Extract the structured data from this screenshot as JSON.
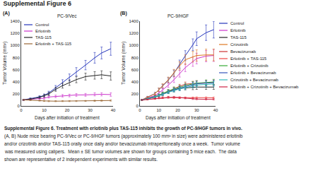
{
  "title": "Supplemental Figure 6",
  "annotations": [
    "Supplemental Figure 6. Treatment with erlotinib plus TAS-115 inhibits the growth of PC-9/HGF tumors in vivo.",
    "(A, B) Nude mice bearing PC-9/Vec or PC-9/HGF tumors (approximately 100 mm³ in size) were administered erlotinib",
    "and/or crizotinib and/or TAS-115 orally once daily and/or bevacizumab intraperitoneally once a week.  Tumor volume",
    "was measured using calipers.  Mean ± SE tumor volumes are shown for groups containing 5 mice each.  The data",
    "shown are representative of 2 independent experiments with similar results."
  ],
  "chart_data": [
    {
      "type": "line",
      "title": "PC-9/Vec",
      "annotations": [
        "(A)"
      ],
      "xlabel": "Days after initiation of treatment",
      "ylabel": "Tumor Volume (mm³)",
      "x": [
        1,
        4,
        8,
        10,
        12,
        15,
        18,
        21,
        24,
        28,
        32,
        35,
        39
      ],
      "series": [
        {
          "name": "Control",
          "color": "#2233bb",
          "values": [
            100,
            120,
            150,
            175,
            215,
            300,
            385,
            470,
            565,
            675,
            795,
            875,
            945
          ],
          "errors": [
            8,
            12,
            18,
            22,
            28,
            38,
            48,
            58,
            68,
            78,
            88,
            98,
            108
          ]
        },
        {
          "name": "Erlotinib",
          "color": "#cc33cc",
          "values": [
            100,
            108,
            118,
            128,
            148,
            158,
            168,
            172,
            182,
            183,
            192,
            192,
            188
          ],
          "errors": [
            8,
            10,
            13,
            16,
            18,
            20,
            20,
            22,
            23,
            23,
            26,
            26,
            28
          ]
        },
        {
          "name": "TAS-115",
          "color": "#222222",
          "values": [
            100,
            113,
            142,
            168,
            198,
            275,
            335,
            385,
            435,
            485,
            505,
            515,
            495
          ],
          "errors": [
            8,
            12,
            16,
            20,
            26,
            33,
            40,
            46,
            52,
            57,
            62,
            65,
            68
          ]
        },
        {
          "name": "Erlotinib + TAS-115",
          "color": "#996633",
          "values": [
            100,
            98,
            88,
            83,
            79,
            79,
            80,
            80,
            81,
            83,
            86,
            88,
            90
          ],
          "errors": [
            6,
            8,
            8,
            8,
            8,
            8,
            8,
            8,
            8,
            8,
            10,
            10,
            10
          ]
        }
      ],
      "xlim": [
        0,
        40
      ],
      "xticks": [
        0,
        10,
        20,
        30,
        40
      ],
      "ylim": [
        0,
        1400
      ],
      "yticks": [
        0,
        200,
        400,
        600,
        800,
        1000,
        1200,
        1400
      ],
      "grid": false,
      "legend": "upper left"
    },
    {
      "type": "line",
      "title": "PC-9/HGF",
      "annotations": [
        "(B)"
      ],
      "xlabel": "Days after initiation of treatment",
      "ylabel": "Tumor Volume (mm³)",
      "x": [
        1,
        4,
        8,
        10,
        12,
        15,
        18,
        21,
        24,
        28,
        30,
        35,
        39
      ],
      "series": [
        {
          "name": "Control",
          "color": "#2233bb",
          "values": [
            100,
            145,
            205,
            265,
            325,
            425,
            540,
            690,
            830,
            1010,
            1110,
            1210,
            1260
          ],
          "errors": [
            8,
            14,
            20,
            28,
            33,
            43,
            53,
            68,
            83,
            98,
            113,
            128,
            138
          ]
        },
        {
          "name": "Erlotinib",
          "color": "#cc33cc",
          "values": [
            100,
            132,
            172,
            213,
            262,
            343,
            433,
            533,
            633,
            733,
            783,
            823,
            833
          ],
          "errors": [
            8,
            13,
            19,
            24,
            28,
            36,
            46,
            56,
            66,
            78,
            88,
            93,
            98
          ]
        },
        {
          "name": "TAS-115",
          "color": "#222222",
          "values": [
            100,
            122,
            152,
            172,
            197,
            232,
            262,
            292,
            302,
            307,
            312,
            312,
            312
          ],
          "errors": [
            6,
            10,
            14,
            18,
            22,
            26,
            30,
            34,
            36,
            38,
            38,
            38,
            38
          ]
        },
        {
          "name": "Crizotinib",
          "color": "#dd7722",
          "values": [
            100,
            142,
            202,
            268,
            332,
            433,
            548,
            663,
            763,
            813,
            833,
            843,
            843
          ],
          "errors": [
            8,
            14,
            20,
            28,
            34,
            44,
            56,
            68,
            80,
            88,
            93,
            96,
            98
          ]
        },
        {
          "name": "Bevacizumab",
          "color": "#cc3333",
          "values": [
            100,
            118,
            145,
            168,
            198,
            242,
            285,
            325,
            360,
            370,
            378,
            382,
            388
          ],
          "errors": [
            6,
            10,
            13,
            17,
            21,
            25,
            28,
            32,
            35,
            37,
            39,
            40,
            41
          ]
        },
        {
          "name": "Erlotinib + TAS-115",
          "color": "#ee4444",
          "values": [
            100,
            108,
            122,
            132,
            137,
            142,
            137,
            135,
            135,
            135,
            137,
            137,
            135
          ],
          "errors": [
            6,
            8,
            10,
            12,
            13,
            14,
            13,
            12,
            12,
            12,
            12,
            12,
            12
          ]
        },
        {
          "name": "Erlotinib + Crizotinib",
          "color": "#33aa33",
          "values": [
            100,
            118,
            152,
            182,
            207,
            247,
            282,
            307,
            337,
            365,
            377,
            387,
            397
          ],
          "errors": [
            6,
            10,
            14,
            18,
            22,
            26,
            30,
            33,
            36,
            39,
            41,
            43,
            44
          ]
        },
        {
          "name": "Erlotinib + Bevacizumab",
          "color": "#3355bb",
          "values": [
            100,
            118,
            146,
            170,
            193,
            236,
            266,
            293,
            318,
            353,
            368,
            376,
            383
          ],
          "errors": [
            6,
            10,
            13,
            16,
            20,
            24,
            28,
            31,
            34,
            38,
            40,
            41,
            42
          ]
        },
        {
          "name": "Crizotinib + Bevacizumab",
          "color": "#33bbbb",
          "values": [
            100,
            118,
            146,
            170,
            188,
            226,
            256,
            280,
            303,
            333,
            346,
            356,
            363
          ],
          "errors": [
            6,
            10,
            13,
            16,
            19,
            23,
            26,
            29,
            32,
            36,
            38,
            39,
            40
          ]
        },
        {
          "name": "Erlotinib + Crizotinib + Bevacizumab",
          "color": "#cc2244",
          "values": [
            100,
            108,
            122,
            132,
            137,
            145,
            145,
            138,
            130,
            118,
            113,
            110,
            108
          ],
          "errors": [
            6,
            8,
            10,
            12,
            13,
            14,
            14,
            13,
            12,
            11,
            10,
            10,
            9
          ]
        }
      ],
      "xlim": [
        0,
        40
      ],
      "xticks": [
        0,
        10,
        20,
        30,
        40
      ],
      "ylim": [
        0,
        1400
      ],
      "yticks": [
        0,
        200,
        400,
        600,
        800,
        1000,
        1200,
        1400
      ],
      "grid": false,
      "legend": "right"
    }
  ]
}
